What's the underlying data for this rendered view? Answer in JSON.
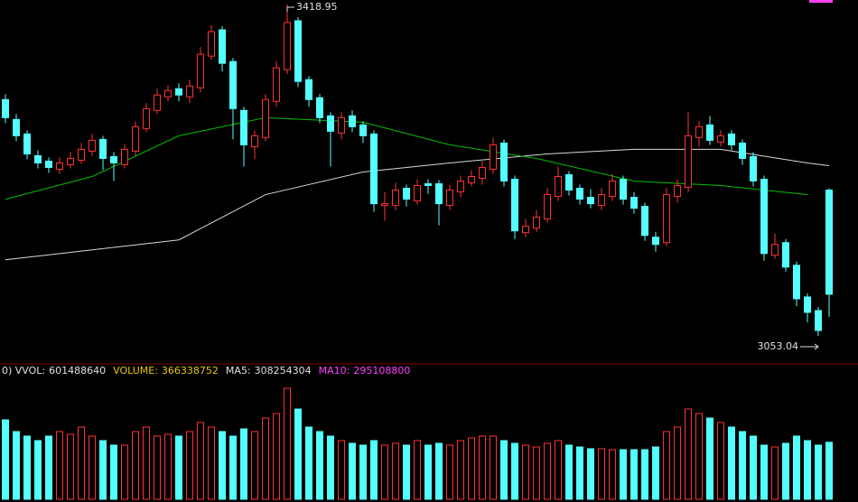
{
  "chart_data": {
    "type": "candlestick",
    "up_color": "#ff3232",
    "down_color": "#54ffff",
    "open": [
      3314,
      3292,
      3276,
      3252,
      3246,
      3237,
      3242,
      3247,
      3257,
      3270,
      3251,
      3242,
      3257,
      3282,
      3302,
      3317,
      3326,
      3317,
      3327,
      3362,
      3391,
      3356,
      3302,
      3262,
      3272,
      3312,
      3347,
      3401,
      3336,
      3316,
      3296,
      3277,
      3296,
      3286,
      3276,
      3197,
      3197,
      3216,
      3202,
      3221,
      3221,
      3197,
      3212,
      3222,
      3227,
      3237,
      3266,
      3226,
      3167,
      3172,
      3182,
      3207,
      3231,
      3216,
      3206,
      3197,
      3207,
      3226,
      3206,
      3196,
      3162,
      3156,
      3207,
      3217,
      3272,
      3286,
      3267,
      3276,
      3266,
      3251,
      3226,
      3142,
      3156,
      3131,
      3096,
      3081,
      3214
    ],
    "high": [
      3320,
      3298,
      3280,
      3258,
      3250,
      3250,
      3256,
      3266,
      3276,
      3274,
      3256,
      3265,
      3290,
      3310,
      3326,
      3330,
      3332,
      3336,
      3372,
      3396,
      3395,
      3360,
      3306,
      3280,
      3320,
      3356,
      3418.95,
      3405,
      3340,
      3320,
      3300,
      3300,
      3302,
      3290,
      3280,
      3212,
      3222,
      3220,
      3226,
      3226,
      3225,
      3220,
      3230,
      3236,
      3246,
      3272,
      3270,
      3230,
      3182,
      3192,
      3216,
      3240,
      3235,
      3220,
      3215,
      3216,
      3232,
      3230,
      3212,
      3200,
      3168,
      3216,
      3226,
      3300,
      3290,
      3296,
      3280,
      3280,
      3270,
      3256,
      3230,
      3166,
      3160,
      3135,
      3100,
      3085,
      3216
    ],
    "low": [
      3288,
      3268,
      3248,
      3238,
      3233,
      3232,
      3238,
      3243,
      3252,
      3236,
      3224,
      3238,
      3252,
      3278,
      3298,
      3312,
      3312,
      3310,
      3322,
      3358,
      3345,
      3270,
      3240,
      3248,
      3268,
      3306,
      3342,
      3328,
      3306,
      3288,
      3240,
      3270,
      3278,
      3266,
      3190,
      3180,
      3192,
      3196,
      3198,
      3210,
      3175,
      3192,
      3206,
      3218,
      3220,
      3232,
      3218,
      3160,
      3162,
      3168,
      3178,
      3202,
      3208,
      3198,
      3194,
      3192,
      3202,
      3198,
      3188,
      3158,
      3146,
      3152,
      3200,
      3212,
      3262,
      3264,
      3262,
      3258,
      3242,
      3218,
      3136,
      3138,
      3124,
      3086,
      3068,
      3053.04,
      3074
    ],
    "close": [
      3294,
      3274,
      3254,
      3244,
      3239,
      3244,
      3249,
      3259,
      3269,
      3249,
      3244,
      3259,
      3284,
      3304,
      3319,
      3324,
      3319,
      3329,
      3364,
      3389,
      3354,
      3304,
      3264,
      3274,
      3314,
      3349,
      3399,
      3334,
      3314,
      3294,
      3279,
      3294,
      3284,
      3274,
      3199,
      3199,
      3214,
      3204,
      3219,
      3219,
      3199,
      3214,
      3224,
      3229,
      3239,
      3264,
      3224,
      3169,
      3174,
      3184,
      3209,
      3229,
      3214,
      3204,
      3199,
      3209,
      3224,
      3204,
      3194,
      3164,
      3154,
      3209,
      3219,
      3274,
      3284,
      3269,
      3274,
      3264,
      3249,
      3224,
      3144,
      3154,
      3129,
      3094,
      3079,
      3059,
      3099
    ],
    "volume": [
      510400000,
      435000000,
      406000000,
      377000000,
      406000000,
      435000000,
      417600000,
      464000000,
      406000000,
      377000000,
      348000000,
      348000000,
      435000000,
      464000000,
      406000000,
      417600000,
      406000000,
      435000000,
      493000000,
      464000000,
      435000000,
      406000000,
      452400000,
      435000000,
      522000000,
      551000000,
      713400000,
      580000000,
      464000000,
      435000000,
      406000000,
      377000000,
      359600000,
      348000000,
      377000000,
      348000000,
      359600000,
      348000000,
      377000000,
      348000000,
      359600000,
      348000000,
      377000000,
      394400000,
      406000000,
      406000000,
      377000000,
      359600000,
      348000000,
      336400000,
      359600000,
      377000000,
      348000000,
      336400000,
      324800000,
      324800000,
      319000000,
      319000000,
      319000000,
      319000000,
      336400000,
      435000000,
      464000000,
      580000000,
      551000000,
      522000000,
      493000000,
      464000000,
      435000000,
      406000000,
      348000000,
      336400000,
      359600000,
      406000000,
      377000000,
      348000000,
      366338752
    ],
    "ma_lines": [
      {
        "color": "#d8d8d8",
        "x": [
          0,
          16,
          24,
          33,
          41,
          50,
          58,
          66,
          74,
          76
        ],
        "values": [
          3137,
          3159,
          3209,
          3234,
          3244,
          3254,
          3259,
          3259,
          3244,
          3241
        ]
      },
      {
        "color": "#00c000",
        "x": [
          0,
          8,
          16,
          24,
          33,
          41,
          49,
          58,
          66,
          74
        ],
        "values": [
          3204,
          3229,
          3274,
          3294,
          3289,
          3264,
          3249,
          3224,
          3219,
          3209
        ]
      }
    ],
    "volume_header": [
      {
        "label": "0) VVOL:",
        "value": 601488640,
        "color": "#e0e0e0"
      },
      {
        "label": "VOLUME:",
        "value": 366338752,
        "color": "#e8c800"
      },
      {
        "label": "MA5:",
        "value": 308254304,
        "color": "#e0e0e0"
      },
      {
        "label": "MA10:",
        "value": 295108800,
        "color": "#ff40ff"
      }
    ]
  }
}
